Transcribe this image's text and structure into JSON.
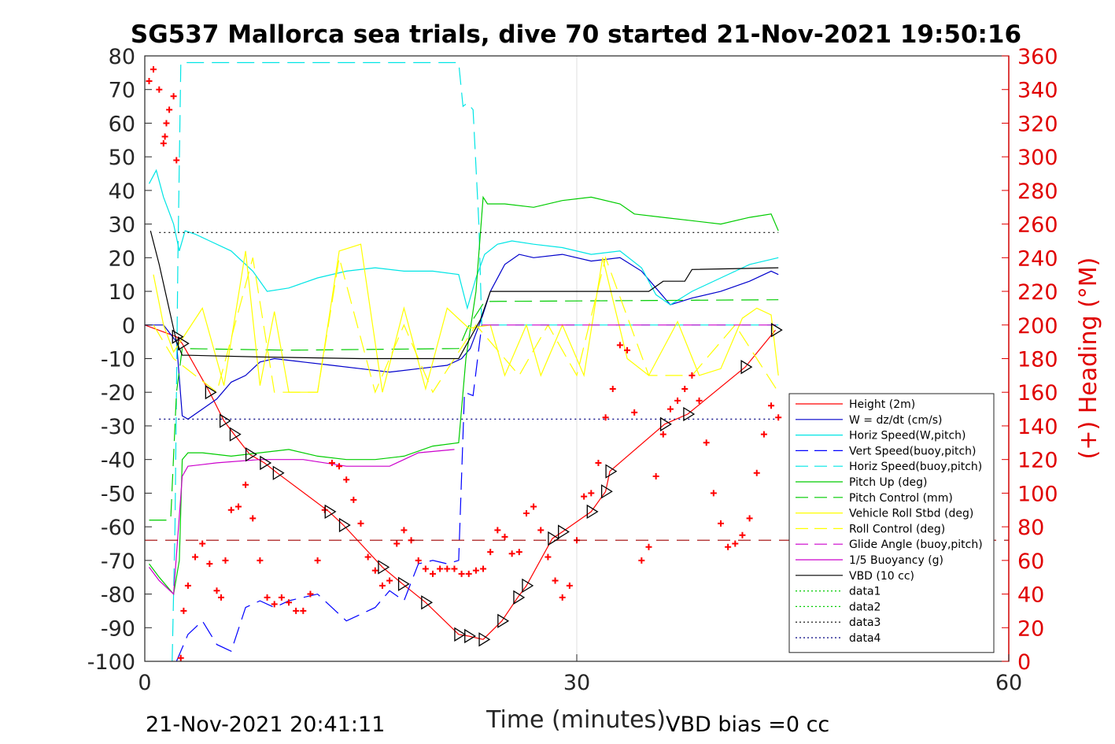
{
  "chart_data": {
    "type": "line",
    "title": "SG537 Mallorca sea trials, dive 70 started 21-Nov-2021 19:50:16",
    "xlabel": "Time (minutes)",
    "ylabel": "",
    "y2label": "(+) Heading (°M)",
    "xlim": [
      0,
      60
    ],
    "ylim": [
      -100,
      80
    ],
    "y2lim": [
      0,
      360
    ],
    "xticks": [
      0,
      30,
      60
    ],
    "yticks": [
      -100,
      -90,
      -80,
      -70,
      -60,
      -50,
      -40,
      -30,
      -20,
      -10,
      0,
      10,
      20,
      30,
      40,
      50,
      60,
      70,
      80
    ],
    "y2ticks": [
      0,
      20,
      40,
      60,
      80,
      100,
      120,
      140,
      160,
      180,
      200,
      220,
      240,
      260,
      280,
      300,
      320,
      340,
      360
    ],
    "grid": "x-only",
    "legend_position": "lower-right",
    "footer_left": "21-Nov-2021 20:41:11",
    "footer_right": "VBD bias =0 cc",
    "series": [
      {
        "name": "Height (2m)",
        "color": "#ff0000",
        "style": "solid",
        "x": [
          0,
          2.2,
          2.6,
          4.5,
          5.5,
          6.2,
          7.3,
          8.3,
          9.2,
          12.8,
          13.8,
          16.5,
          17.9,
          19.5,
          21.8,
          22.5,
          23.5,
          24.8,
          25.9,
          26.5,
          28.3,
          29.0,
          31.0,
          32.0,
          32.3,
          36.1,
          37.7,
          41.7,
          43.8
        ],
        "values": [
          0,
          -3.5,
          -5.5,
          -20,
          -28.5,
          -32.5,
          -38.5,
          -41,
          -44,
          -55.5,
          -59.5,
          -72,
          -77,
          -82.5,
          -92,
          -92.5,
          -93.5,
          -88,
          -81,
          -77.5,
          -63.5,
          -61.5,
          -55.5,
          -49.5,
          -43.5,
          -29.5,
          -26.5,
          -12.5,
          -1.5
        ]
      },
      {
        "name": "W = dz/dt (cm/s)",
        "color": "#0000cc",
        "style": "solid",
        "x": [
          0,
          1.3,
          2.2,
          2.6,
          3.0,
          4.0,
          5.0,
          6.0,
          7.0,
          8.0,
          9.0,
          11.0,
          13.0,
          15.0,
          17.0,
          19.0,
          21.0,
          22.0,
          22.6,
          23.4,
          24.0,
          25.0,
          26.0,
          27.0,
          29.0,
          31.0,
          33.0,
          34.5,
          35.5,
          36.5,
          38.0,
          40.0,
          42.0,
          43.5,
          44.0
        ],
        "values": [
          0,
          0,
          -5,
          -27,
          -28,
          -25,
          -22,
          -17,
          -15,
          -11,
          -10,
          -11,
          -12,
          -13,
          -14,
          -13,
          -12,
          -10,
          -7,
          2,
          10,
          18,
          21,
          20,
          21,
          19,
          20,
          16,
          11,
          6,
          8,
          10,
          13,
          16,
          15
        ]
      },
      {
        "name": "Horiz Speed(W,pitch)",
        "color": "#00e5e5",
        "style": "solid",
        "x": [
          0.3,
          0.8,
          1.3,
          2.0,
          2.4,
          2.8,
          3.5,
          4.5,
          6.0,
          7.5,
          8.5,
          10.0,
          12.0,
          14.0,
          16.0,
          18.0,
          20.0,
          21.8,
          22.4,
          23.0,
          23.6,
          24.5,
          25.5,
          27.0,
          29.0,
          31.0,
          33.0,
          34.5,
          35.5,
          36.5,
          38.0,
          40.0,
          42.0,
          44.0
        ],
        "values": [
          42,
          46,
          38,
          30,
          22,
          28,
          27,
          25,
          22,
          16,
          10,
          11,
          14,
          16,
          17,
          16,
          16,
          15,
          5,
          14,
          21,
          24,
          25,
          24,
          23,
          21,
          22,
          17,
          9,
          6,
          10,
          14,
          18,
          20
        ]
      },
      {
        "name": "Vert Speed(buoy,pitch)",
        "color": "#0000ff",
        "style": "dashed",
        "x": [
          2.2,
          3.0,
          4.0,
          5.0,
          6.0,
          7.0,
          8.0,
          9.0,
          10.0,
          12.0,
          14.0,
          16.0,
          17.0,
          18.0,
          19.0,
          20.0,
          21.0,
          21.8,
          22.2,
          22.8,
          23.4
        ],
        "values": [
          -100,
          -92,
          -88,
          -95,
          -97,
          -84,
          -82,
          -84,
          -82,
          -80,
          -88,
          -84,
          -79,
          -82,
          -71,
          -70,
          -71,
          -70,
          -20,
          -21,
          0
        ]
      },
      {
        "name": "Horiz Speed(buoy,pitch)",
        "color": "#00e5e5",
        "style": "dashed",
        "x": [
          1.9,
          2.1,
          2.3,
          2.5,
          21.8,
          22.1,
          22.4,
          22.8,
          23.2,
          23.4,
          44.0
        ],
        "values": [
          -100,
          -60,
          20,
          78,
          78,
          65,
          66,
          64,
          30,
          0,
          0
        ]
      },
      {
        "name": "Pitch Up (deg)",
        "color": "#00cc00",
        "style": "solid",
        "x": [
          0.3,
          1.0,
          2.0,
          2.4,
          2.6,
          3.0,
          4.0,
          6.0,
          8.0,
          10.0,
          12.0,
          14.0,
          16.0,
          18.0,
          20.0,
          21.8,
          22.3,
          23.0,
          23.5,
          23.8,
          25.0,
          27.0,
          29.0,
          31.0,
          33.0,
          34.0,
          36.0,
          38.0,
          40.0,
          42.0,
          43.5,
          44.0
        ],
        "values": [
          -71,
          -75,
          -80,
          -70,
          -40,
          -38,
          -38,
          -39,
          -38,
          -37,
          -39,
          -40,
          -40,
          -39,
          -36,
          -35,
          -10,
          10,
          38,
          36,
          36,
          35,
          37,
          38,
          36,
          33,
          32,
          31,
          30,
          32,
          33,
          28
        ]
      },
      {
        "name": "Pitch Control (mm)",
        "color": "#00cc00",
        "style": "dashed",
        "x": [
          0.3,
          1.8,
          2.2,
          2.6,
          10.0,
          21.8,
          22.4,
          23.6,
          44.0
        ],
        "values": [
          -58,
          -58,
          -20,
          -7,
          -7.5,
          -7,
          -1,
          7,
          7.5
        ]
      },
      {
        "name": "Vehicle Roll Stbd (deg)",
        "color": "#ffff00",
        "style": "solid",
        "x": [
          0.6,
          1.3,
          2.0,
          4.0,
          5.5,
          7.0,
          8.0,
          9.0,
          10.0,
          12.0,
          13.5,
          15.0,
          16.5,
          18.0,
          19.5,
          21.0,
          22.5,
          24.0,
          25.0,
          26.5,
          27.5,
          29.0,
          30.5,
          31.8,
          33.5,
          35.0,
          37.0,
          38.5,
          40.0,
          41.5,
          42.5,
          43.5,
          44.0
        ],
        "values": [
          15,
          0,
          -8,
          5,
          -18,
          22,
          -18,
          4,
          -20,
          -20,
          22,
          24,
          -20,
          5,
          -19,
          5,
          -1,
          0,
          -15,
          0,
          -15,
          0,
          -15,
          20,
          -10,
          -15,
          1,
          -15,
          -13,
          2,
          5,
          3,
          -15
        ]
      },
      {
        "name": "Roll Control (deg)",
        "color": "#ffff00",
        "style": "dashed",
        "x": [
          0.6,
          2.0,
          5.0,
          7.5,
          9.0,
          12.0,
          13.5,
          16.0,
          18.0,
          20.0,
          23.0,
          26.0,
          28.0,
          30.0,
          32.0,
          35.0,
          38.0,
          41.0,
          44.0
        ],
        "values": [
          0,
          -10,
          -20,
          20,
          -20,
          -20,
          20,
          -20,
          0,
          -20,
          0,
          -15,
          0,
          -15,
          20,
          -15,
          -15,
          0,
          -20
        ]
      },
      {
        "name": "Glide Angle (buoy,pitch)",
        "color": "#cc00cc",
        "style": "dashed",
        "x": [
          23.4,
          44.0
        ],
        "values": [
          0,
          0
        ]
      },
      {
        "name": "1/5 Buoyancy (g)",
        "color": "#cc00cc",
        "style": "solid",
        "x": [
          0.3,
          1.0,
          2.0,
          2.6,
          3.0,
          5.0,
          8.0,
          11.0,
          14.0,
          17.0,
          19.0,
          21.5
        ],
        "values": [
          -72,
          -76,
          -80,
          -45,
          -42,
          -41,
          -40,
          -40,
          -42,
          -42,
          -38,
          -37
        ]
      },
      {
        "name": "VBD (10 cc)",
        "color": "#000000",
        "style": "solid",
        "x": [
          0.4,
          1.0,
          2.2,
          2.6,
          3.0,
          8.0,
          15.0,
          21.8,
          23.3,
          24.0,
          30.0,
          35.0,
          36.0,
          37.5,
          38.0,
          44.0
        ],
        "values": [
          28,
          18,
          -5,
          -9,
          -9,
          -9.5,
          -10,
          -10,
          1.5,
          10,
          10,
          10,
          13,
          13,
          16.5,
          17
        ]
      },
      {
        "name": "data1",
        "color": "#00cc00",
        "style": "dotted",
        "x": [
          0,
          0
        ],
        "values": [
          0,
          0
        ]
      },
      {
        "name": "data2",
        "color": "#00cc00",
        "style": "dotted",
        "x": [
          0,
          0
        ],
        "values": [
          0,
          0
        ]
      },
      {
        "name": "data3",
        "color": "#000000",
        "style": "dotted",
        "x": [
          1.0,
          44.0
        ],
        "values": [
          27.5,
          27.5
        ]
      },
      {
        "name": "data4",
        "color": "#000080",
        "style": "dotted",
        "x": [
          1.0,
          44.0
        ],
        "values": [
          -28,
          -28
        ]
      }
    ],
    "heading_series": {
      "name": "(+) Heading",
      "color": "#ff0000",
      "axis": "right",
      "x": [
        0.3,
        0.6,
        1.0,
        1.3,
        1.4,
        1.5,
        1.7,
        2.0,
        2.2,
        2.5,
        2.7,
        3.0,
        3.5,
        4.0,
        4.5,
        5.0,
        5.3,
        5.6,
        6.0,
        6.5,
        7.0,
        7.5,
        8.0,
        8.5,
        9.0,
        9.5,
        10.0,
        10.5,
        11.0,
        11.5,
        12.0,
        12.5,
        13.0,
        13.5,
        14.0,
        14.5,
        15.0,
        15.5,
        16.0,
        16.5,
        17.0,
        17.5,
        18.0,
        18.5,
        19.0,
        19.5,
        20.0,
        20.5,
        21.0,
        21.5,
        22.0,
        22.5,
        23.0,
        23.5,
        24.0,
        24.5,
        25.0,
        25.5,
        26.0,
        26.5,
        27.0,
        27.5,
        28.0,
        28.5,
        29.0,
        29.5,
        30.0,
        30.5,
        31.0,
        31.5,
        32.0,
        32.5,
        33.0,
        33.5,
        34.0,
        34.5,
        35.0,
        35.5,
        36.0,
        36.5,
        37.0,
        37.5,
        38.0,
        38.5,
        39.0,
        39.5,
        40.0,
        40.5,
        41.0,
        41.5,
        42.0,
        42.5,
        43.0,
        43.5,
        44.0
      ],
      "values": [
        345,
        352,
        340,
        308,
        312,
        320,
        328,
        336,
        298,
        2,
        30,
        45,
        62,
        70,
        58,
        42,
        38,
        60,
        90,
        92,
        105,
        85,
        60,
        38,
        34,
        38,
        35,
        30,
        30,
        40,
        60,
        90,
        118,
        116,
        108,
        96,
        82,
        62,
        54,
        45,
        48,
        70,
        78,
        72,
        60,
        55,
        52,
        55,
        55,
        55,
        52,
        52,
        54,
        55,
        65,
        78,
        74,
        64,
        65,
        88,
        92,
        78,
        62,
        48,
        38,
        45,
        72,
        98,
        100,
        118,
        145,
        162,
        188,
        185,
        148,
        60,
        68,
        110,
        135,
        150,
        155,
        162,
        170,
        155,
        130,
        100,
        82,
        68,
        70,
        75,
        85,
        112,
        135,
        152,
        145
      ]
    }
  }
}
